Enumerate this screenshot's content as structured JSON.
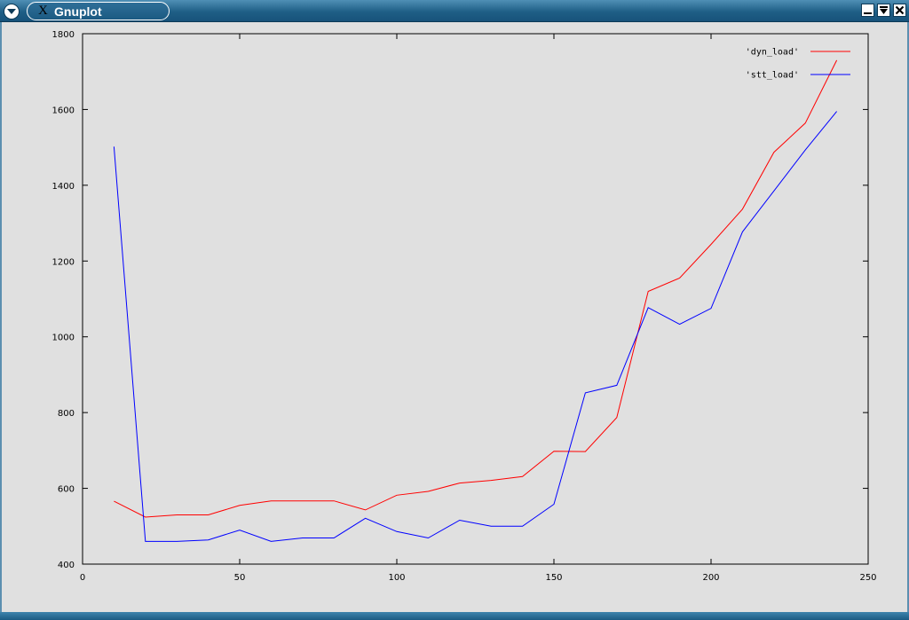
{
  "window": {
    "title": "Gnuplot",
    "logo_glyph": "X",
    "icons": [
      "window-menu-icon",
      "minimize-icon",
      "maximize-icon",
      "close-icon"
    ]
  },
  "chart_data": {
    "type": "line",
    "title": "",
    "xlabel": "",
    "ylabel": "",
    "xlim": [
      0,
      250
    ],
    "ylim": [
      400,
      1800
    ],
    "xticks": [
      0,
      50,
      100,
      150,
      200,
      250
    ],
    "yticks": [
      400,
      600,
      800,
      1000,
      1200,
      1400,
      1600,
      1800
    ],
    "grid": false,
    "legend_position": "top-right",
    "x": [
      10,
      20,
      30,
      40,
      50,
      60,
      70,
      80,
      90,
      100,
      110,
      120,
      130,
      140,
      150,
      160,
      170,
      180,
      190,
      200,
      210,
      220,
      230,
      240
    ],
    "series": [
      {
        "name": "'dyn_load'",
        "color": "#ff0000",
        "values": [
          566,
          524,
          530,
          530,
          555,
          567,
          567,
          567,
          543,
          582,
          592,
          614,
          621,
          631,
          698,
          697,
          787,
          1120,
          1155,
          1244,
          1337,
          1487,
          1564,
          1730
        ]
      },
      {
        "name": "'stt_load'",
        "color": "#0000ff",
        "values": [
          1502,
          460,
          460,
          464,
          490,
          460,
          469,
          469,
          521,
          486,
          469,
          516,
          500,
          500,
          558,
          852,
          872,
          1077,
          1033,
          1075,
          1277,
          1385,
          1493,
          1595
        ]
      }
    ]
  }
}
